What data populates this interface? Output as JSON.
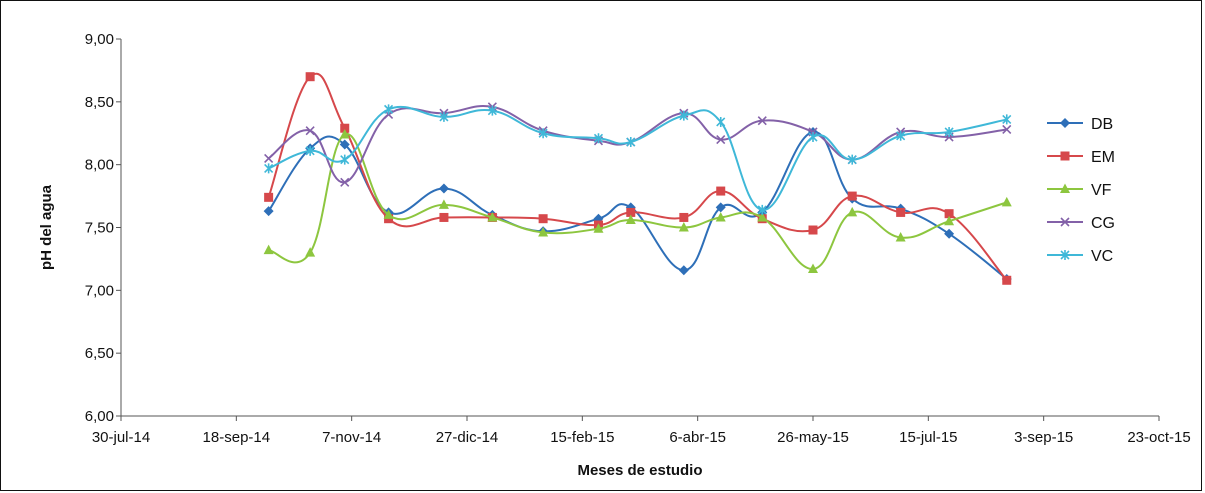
{
  "chart_data": {
    "type": "line",
    "xlabel": "Meses de estudio",
    "ylabel": "pH del agua",
    "ylim": [
      6.0,
      9.0
    ],
    "y_ticks": [
      "6,00",
      "6,50",
      "7,00",
      "7,50",
      "8,00",
      "8,50",
      "9,00"
    ],
    "xlim": [
      "2014-07-30",
      "2015-10-23"
    ],
    "x_ticks": [
      {
        "date": "2014-07-30",
        "label": "30-jul-14"
      },
      {
        "date": "2014-09-18",
        "label": "18-sep-14"
      },
      {
        "date": "2014-11-07",
        "label": "7-nov-14"
      },
      {
        "date": "2014-12-27",
        "label": "27-dic-14"
      },
      {
        "date": "2015-02-15",
        "label": "15-feb-15"
      },
      {
        "date": "2015-04-06",
        "label": "6-abr-15"
      },
      {
        "date": "2015-05-26",
        "label": "26-may-15"
      },
      {
        "date": "2015-07-15",
        "label": "15-jul-15"
      },
      {
        "date": "2015-09-03",
        "label": "3-sep-15"
      },
      {
        "date": "2015-10-23",
        "label": "23-oct-15"
      }
    ],
    "x": [
      "2014-10-02",
      "2014-10-20",
      "2014-11-04",
      "2014-11-23",
      "2014-12-17",
      "2015-01-07",
      "2015-01-29",
      "2015-02-22",
      "2015-03-08",
      "2015-03-31",
      "2015-04-16",
      "2015-05-04",
      "2015-05-26",
      "2015-06-12",
      "2015-07-03",
      "2015-07-24",
      "2015-08-18"
    ],
    "grid": false,
    "legend_position": "right",
    "series": [
      {
        "name": "DB",
        "color": "#2e6fb8",
        "marker": "diamond",
        "values": [
          7.63,
          8.13,
          8.16,
          7.62,
          7.81,
          7.6,
          7.47,
          7.57,
          7.66,
          7.16,
          7.66,
          7.62,
          8.26,
          7.73,
          7.65,
          7.45,
          7.09
        ]
      },
      {
        "name": "EM",
        "color": "#d6484b",
        "marker": "square",
        "values": [
          7.74,
          8.7,
          8.29,
          7.57,
          7.58,
          7.58,
          7.57,
          7.52,
          7.62,
          7.58,
          7.79,
          7.57,
          7.48,
          7.75,
          7.62,
          7.61,
          7.08
        ]
      },
      {
        "name": "VF",
        "color": "#8dc63f",
        "marker": "triangle",
        "values": [
          7.32,
          7.3,
          8.24,
          7.6,
          7.68,
          7.58,
          7.46,
          7.49,
          7.56,
          7.5,
          7.58,
          7.58,
          7.17,
          7.62,
          7.42,
          7.55,
          7.7
        ]
      },
      {
        "name": "CG",
        "color": "#8361a8",
        "marker": "x",
        "values": [
          8.05,
          8.27,
          7.86,
          8.4,
          8.41,
          8.46,
          8.27,
          8.19,
          8.18,
          8.41,
          8.2,
          8.35,
          8.26,
          8.04,
          8.26,
          8.22,
          8.28
        ]
      },
      {
        "name": "VC",
        "color": "#3fb8d8",
        "marker": "asterisk",
        "values": [
          7.97,
          8.11,
          8.04,
          8.44,
          8.38,
          8.43,
          8.25,
          8.21,
          8.18,
          8.39,
          8.34,
          7.64,
          8.22,
          8.04,
          8.23,
          8.26,
          8.36
        ]
      }
    ]
  }
}
